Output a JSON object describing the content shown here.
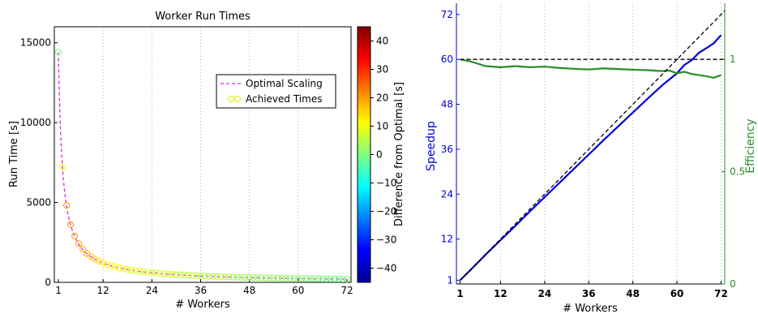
{
  "chart_data": [
    {
      "type": "scatter",
      "title": "Worker Run Times",
      "xlabel": "# Workers",
      "ylabel": "Run Time [s]",
      "xlim": [
        0,
        73
      ],
      "ylim": [
        0,
        16000
      ],
      "xticks": [
        1,
        12,
        24,
        36,
        48,
        60,
        72
      ],
      "yticks": [
        0,
        5000,
        10000,
        15000
      ],
      "grid": "x-vertical-dotted",
      "legend_position": "upper-right",
      "legend": [
        "Optimal Scaling",
        "Achieved Times"
      ],
      "optimal_scaling": {
        "name": "Optimal Scaling",
        "base_time": 14400,
        "color": "#e020e0"
      },
      "series": [
        {
          "name": "Achieved Times",
          "x": [
            1,
            2,
            3,
            4,
            5,
            6,
            7,
            8,
            9,
            10,
            11,
            12,
            13,
            14,
            15,
            16,
            17,
            18,
            19,
            20,
            21,
            22,
            23,
            24,
            25,
            26,
            27,
            28,
            29,
            30,
            31,
            32,
            33,
            34,
            35,
            36,
            37,
            38,
            39,
            40,
            41,
            42,
            43,
            44,
            45,
            46,
            47,
            48,
            49,
            50,
            51,
            52,
            53,
            54,
            55,
            56,
            57,
            58,
            59,
            60,
            61,
            62,
            63,
            64,
            65,
            66,
            67,
            68,
            69,
            70,
            71,
            72
          ],
          "y": [
            14400,
            7210,
            4820,
            3620,
            2900,
            2420,
            2075,
            1818,
            1616,
            1455,
            1323,
            1213,
            1120,
            1040,
            971,
            910,
            857,
            809,
            767,
            729,
            694,
            662,
            634,
            608,
            584,
            562,
            541,
            522,
            504,
            487,
            471,
            456,
            442,
            429,
            417,
            405,
            394,
            384,
            374,
            364,
            355,
            347,
            339,
            331,
            323,
            316,
            310,
            303,
            297,
            291,
            285,
            280,
            275,
            270,
            265,
            260,
            255,
            251,
            247,
            243,
            239,
            235,
            231,
            228,
            224,
            221,
            218,
            215,
            212,
            209,
            206,
            203
          ],
          "difference": [
            0,
            10,
            20,
            20,
            20,
            20,
            18,
            18,
            16,
            15,
            14,
            13,
            12,
            11,
            11,
            10,
            10,
            9,
            9,
            9,
            8,
            8,
            8,
            8,
            8,
            8,
            7,
            7,
            7,
            7,
            6,
            6,
            6,
            6,
            6,
            5,
            5,
            5,
            5,
            5,
            5,
            4,
            4,
            4,
            4,
            3,
            3,
            3,
            3,
            3,
            2,
            2,
            2,
            2,
            2,
            2,
            2,
            1,
            1,
            1,
            1,
            1,
            0,
            0,
            0,
            0,
            0,
            -1,
            -1,
            -1,
            -1,
            -1
          ]
        }
      ],
      "colorbar": {
        "label": "Difference from Optimal [s]",
        "range": [
          -45,
          45
        ],
        "ticks": [
          -40,
          -30,
          -20,
          -10,
          0,
          10,
          20,
          30,
          40
        ],
        "tick_labels": [
          "−40",
          "−30",
          "−20",
          "−10",
          "0",
          "10",
          "20",
          "30",
          "40"
        ],
        "colormap": "jet"
      }
    },
    {
      "type": "line",
      "xlabel": "# Workers",
      "ylabel": "Speedup",
      "y2label": "Efficiency",
      "xlim": [
        0,
        73
      ],
      "ylim": [
        0,
        75
      ],
      "y2lim": [
        0,
        1.25
      ],
      "xticks": [
        1,
        12,
        24,
        36,
        48,
        60,
        72
      ],
      "yticks": [
        1,
        12,
        24,
        36,
        48,
        60,
        72
      ],
      "y2ticks": [
        0,
        0.5,
        1
      ],
      "y2tick_labels": [
        "0",
        "0.5",
        "1"
      ],
      "grid": "x-vertical-dotted",
      "series": [
        {
          "name": "Speedup",
          "axis": "left",
          "color": "#0000dd",
          "x": [
            1,
            4,
            8,
            12,
            16,
            20,
            24,
            28,
            32,
            36,
            40,
            44,
            48,
            52,
            56,
            60,
            62,
            64,
            66,
            68,
            70,
            72
          ],
          "y": [
            1,
            3.9,
            7.9,
            11.7,
            15.5,
            19.4,
            23.2,
            27.0,
            30.8,
            34.6,
            38.4,
            42.1,
            45.8,
            49.5,
            53.1,
            56.3,
            58.5,
            59.8,
            61.8,
            63.0,
            64.3,
            66.5
          ]
        },
        {
          "name": "Efficiency",
          "axis": "right",
          "color": "#2a8c2a",
          "x": [
            1,
            4,
            8,
            12,
            16,
            20,
            24,
            28,
            32,
            36,
            40,
            44,
            48,
            52,
            56,
            58,
            60,
            62,
            64,
            66,
            68,
            70,
            72
          ],
          "y": [
            1.0,
            0.99,
            0.97,
            0.965,
            0.97,
            0.965,
            0.968,
            0.962,
            0.958,
            0.955,
            0.96,
            0.957,
            0.954,
            0.952,
            0.948,
            0.95,
            0.938,
            0.945,
            0.935,
            0.93,
            0.925,
            0.918,
            0.93
          ]
        },
        {
          "name": "Ideal Speedup",
          "axis": "left",
          "style": "dashed",
          "color": "#000000",
          "x": [
            1,
            73
          ],
          "y": [
            1,
            73
          ]
        },
        {
          "name": "Ideal Efficiency",
          "axis": "right",
          "style": "dashed",
          "color": "#000000",
          "x": [
            1,
            73
          ],
          "y": [
            1,
            1
          ]
        }
      ]
    }
  ]
}
